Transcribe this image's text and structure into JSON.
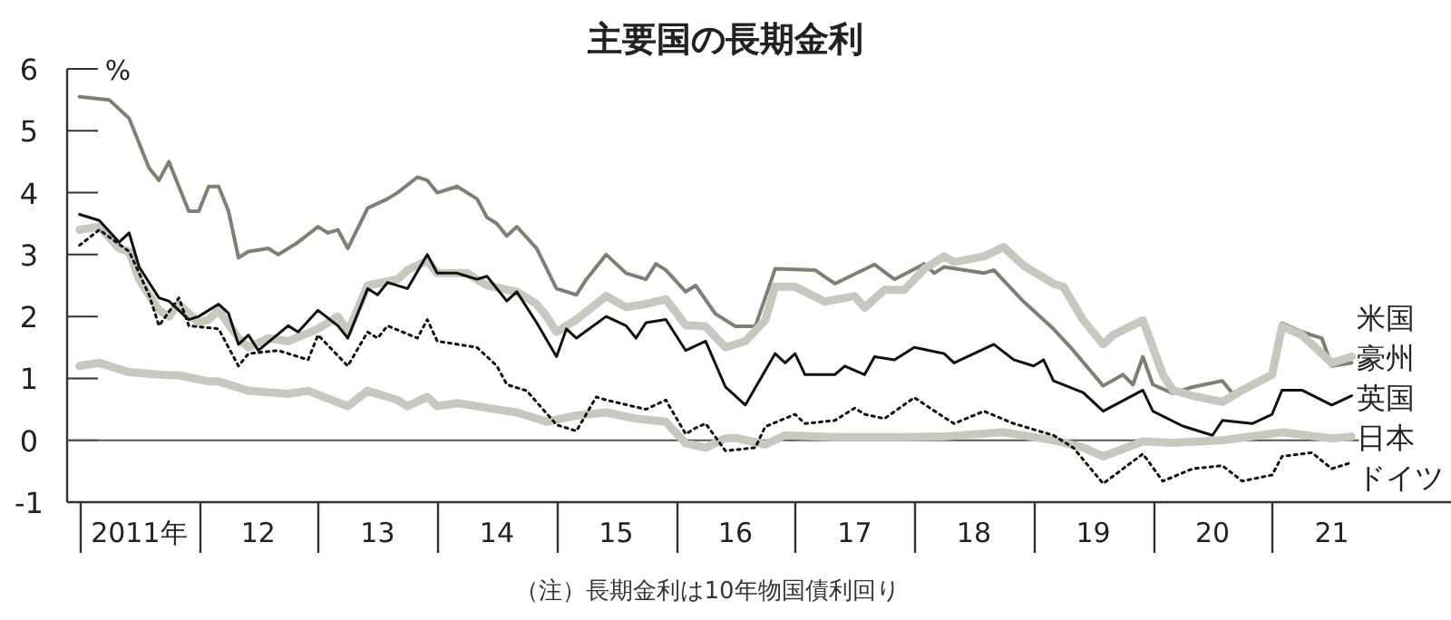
{
  "chart_data": {
    "type": "line",
    "title": "主要国の長期金利",
    "ylabel": "%",
    "annotations": [
      "（注）長期金利は10年物国債利回り"
    ],
    "xlim": [
      "2010-11-24",
      "2022-07-01"
    ],
    "ylim": [
      -1,
      6
    ],
    "yticks": [
      -1,
      0,
      1,
      2,
      3,
      4,
      5,
      6
    ],
    "xticks": [
      {
        "value": "2011-01-01",
        "label": null
      },
      {
        "value": "2011-07-01",
        "label": "2011年"
      },
      {
        "value": "2012-01-01",
        "label": null
      },
      {
        "value": "2012-07-01",
        "label": "12"
      },
      {
        "value": "2013-01-01",
        "label": null
      },
      {
        "value": "2013-07-01",
        "label": "13"
      },
      {
        "value": "2014-01-01",
        "label": null
      },
      {
        "value": "2014-07-01",
        "label": "14"
      },
      {
        "value": "2015-01-01",
        "label": null
      },
      {
        "value": "2015-07-01",
        "label": "15"
      },
      {
        "value": "2016-01-01",
        "label": null
      },
      {
        "value": "2016-07-01",
        "label": "16"
      },
      {
        "value": "2017-01-01",
        "label": null
      },
      {
        "value": "2017-07-01",
        "label": "17"
      },
      {
        "value": "2018-01-01",
        "label": null
      },
      {
        "value": "2018-07-01",
        "label": "18"
      },
      {
        "value": "2019-01-01",
        "label": null
      },
      {
        "value": "2019-07-01",
        "label": "19"
      },
      {
        "value": "2020-01-01",
        "label": null
      },
      {
        "value": "2020-07-01",
        "label": "20"
      },
      {
        "value": "2021-01-01",
        "label": null
      },
      {
        "value": "2021-07-01",
        "label": "21"
      }
    ],
    "grid": false,
    "marker": "none",
    "ref_lines": [
      {
        "axis": "y",
        "value": 0,
        "color": "#555555"
      }
    ],
    "series": [
      {
        "name": "豪州",
        "color": "#7f7f77",
        "line_style": "solid",
        "x": [
          "2011-01",
          "2011-04",
          "2011-06",
          "2011-08",
          "2011-09",
          "2011-10",
          "2011-12",
          "2012-01",
          "2012-02",
          "2012-03",
          "2012-04",
          "2012-05",
          "2012-06",
          "2012-08",
          "2012-09",
          "2012-11",
          "2013-01",
          "2013-02",
          "2013-03",
          "2013-04",
          "2013-06",
          "2013-08",
          "2013-09",
          "2013-11",
          "2013-12",
          "2014-01",
          "2014-03",
          "2014-05",
          "2014-06",
          "2014-07",
          "2014-08",
          "2014-09",
          "2014-11",
          "2015-01",
          "2015-03",
          "2015-04",
          "2015-06",
          "2015-08",
          "2015-10",
          "2015-11",
          "2015-12",
          "2016-02",
          "2016-03",
          "2016-05",
          "2016-07",
          "2016-09",
          "2016-11",
          "2017-03",
          "2017-05",
          "2017-09",
          "2017-11",
          "2018-02",
          "2018-03",
          "2018-04",
          "2018-08",
          "2018-09",
          "2018-12",
          "2019-03",
          "2019-05",
          "2019-08",
          "2019-10",
          "2019-11",
          "2019-12",
          "2020-01",
          "2020-03",
          "2020-05",
          "2020-08",
          "2020-09",
          "2021-01",
          "2021-02",
          "2021-04",
          "2021-06",
          "2021-07",
          "2021-09"
        ],
        "values": [
          5.55,
          5.5,
          5.2,
          4.4,
          4.2,
          4.5,
          3.7,
          3.7,
          4.1,
          4.1,
          3.7,
          2.95,
          3.05,
          3.1,
          3.0,
          3.2,
          3.45,
          3.35,
          3.4,
          3.1,
          3.75,
          3.9,
          4.0,
          4.25,
          4.2,
          4.0,
          4.1,
          3.9,
          3.6,
          3.5,
          3.3,
          3.45,
          3.1,
          2.45,
          2.35,
          2.6,
          3.0,
          2.7,
          2.6,
          2.85,
          2.75,
          2.4,
          2.5,
          2.04,
          1.84,
          1.84,
          2.77,
          2.75,
          2.53,
          2.84,
          2.6,
          2.85,
          2.7,
          2.8,
          2.7,
          2.75,
          2.24,
          1.8,
          1.45,
          0.88,
          1.06,
          0.9,
          1.35,
          0.9,
          0.76,
          0.86,
          0.96,
          0.76,
          1.06,
          1.89,
          1.75,
          1.65,
          1.2,
          1.25
        ]
      },
      {
        "name": "米国",
        "color": "#c8c8c0",
        "line_style": "solid",
        "x": [
          "2011-01",
          "2011-03",
          "2011-05",
          "2011-06",
          "2011-07",
          "2011-09",
          "2011-10",
          "2011-11",
          "2012-01",
          "2012-02",
          "2012-03",
          "2012-05",
          "2012-06",
          "2012-08",
          "2012-10",
          "2013-01",
          "2013-03",
          "2013-04",
          "2013-06",
          "2013-09",
          "2013-10",
          "2013-12",
          "2014-01",
          "2014-04",
          "2014-06",
          "2014-09",
          "2014-11",
          "2014-12",
          "2015-01",
          "2015-03",
          "2015-06",
          "2015-08",
          "2015-10",
          "2015-12",
          "2016-02",
          "2016-04",
          "2016-06",
          "2016-08",
          "2016-10",
          "2016-11",
          "2017-01",
          "2017-04",
          "2017-07",
          "2017-08",
          "2017-10",
          "2017-12",
          "2018-02",
          "2018-04",
          "2018-05",
          "2018-08",
          "2018-10",
          "2018-12",
          "2019-03",
          "2019-04",
          "2019-06",
          "2019-08",
          "2019-09",
          "2019-12",
          "2020-02",
          "2020-03",
          "2020-05",
          "2020-08",
          "2020-10",
          "2021-01",
          "2021-02",
          "2021-04",
          "2021-07",
          "2021-09"
        ],
        "values": [
          3.4,
          3.45,
          3.1,
          3.05,
          2.6,
          2.1,
          2.0,
          2.2,
          1.9,
          1.95,
          2.1,
          1.65,
          1.5,
          1.65,
          1.6,
          1.8,
          2.0,
          1.75,
          2.5,
          2.6,
          2.75,
          2.9,
          2.7,
          2.7,
          2.5,
          2.4,
          2.2,
          2.0,
          1.75,
          1.95,
          2.33,
          2.15,
          2.2,
          2.28,
          1.86,
          1.84,
          1.5,
          1.6,
          1.94,
          2.48,
          2.48,
          2.24,
          2.33,
          2.14,
          2.43,
          2.43,
          2.77,
          2.97,
          2.88,
          2.97,
          3.12,
          2.82,
          2.53,
          2.48,
          1.94,
          1.55,
          1.7,
          1.94,
          1.06,
          0.81,
          0.72,
          0.62,
          0.81,
          1.06,
          1.84,
          1.7,
          1.25,
          1.35
        ]
      },
      {
        "name": "英国",
        "color": "#111111",
        "line_style": "solid",
        "x": [
          "2011-01",
          "2011-03",
          "2011-05",
          "2011-06",
          "2011-07",
          "2011-09",
          "2011-10",
          "2011-12",
          "2012-01",
          "2012-03",
          "2012-04",
          "2012-05",
          "2012-06",
          "2012-07",
          "2012-10",
          "2012-11",
          "2013-01",
          "2013-03",
          "2013-04",
          "2013-06",
          "2013-07",
          "2013-08",
          "2013-10",
          "2013-12",
          "2014-01",
          "2014-03",
          "2014-05",
          "2014-06",
          "2014-08",
          "2014-09",
          "2014-11",
          "2015-01",
          "2015-02",
          "2015-03",
          "2015-06",
          "2015-08",
          "2015-09",
          "2015-10",
          "2015-12",
          "2016-02",
          "2016-04",
          "2016-06",
          "2016-08",
          "2016-11",
          "2016-12",
          "2017-01",
          "2017-02",
          "2017-05",
          "2017-06",
          "2017-08",
          "2017-09",
          "2017-11",
          "2018-01",
          "2018-04",
          "2018-05",
          "2018-09",
          "2018-11",
          "2019-01",
          "2019-02",
          "2019-03",
          "2019-06",
          "2019-08",
          "2019-12",
          "2020-01",
          "2020-04",
          "2020-07",
          "2020-08",
          "2020-11",
          "2021-01",
          "2021-02",
          "2021-04",
          "2021-07",
          "2021-09"
        ],
        "values": [
          3.65,
          3.55,
          3.2,
          3.35,
          2.8,
          2.3,
          2.25,
          1.95,
          2.0,
          2.2,
          2.05,
          1.55,
          1.7,
          1.45,
          1.85,
          1.75,
          2.1,
          1.85,
          1.65,
          2.45,
          2.35,
          2.55,
          2.45,
          3.0,
          2.7,
          2.7,
          2.6,
          2.65,
          2.25,
          2.4,
          1.9,
          1.35,
          1.8,
          1.65,
          2.0,
          1.85,
          1.65,
          1.9,
          1.95,
          1.45,
          1.6,
          0.86,
          0.57,
          1.4,
          1.25,
          1.4,
          1.06,
          1.06,
          1.2,
          1.06,
          1.35,
          1.3,
          1.5,
          1.4,
          1.25,
          1.55,
          1.3,
          1.2,
          1.3,
          0.96,
          0.77,
          0.47,
          0.81,
          0.47,
          0.23,
          0.08,
          0.32,
          0.27,
          0.42,
          0.81,
          0.81,
          0.57,
          0.72
        ]
      },
      {
        "name": "日本",
        "color": "#c8c8c0",
        "line_style": "solid",
        "x": [
          "2011-01",
          "2011-03",
          "2011-06",
          "2011-10",
          "2011-11",
          "2012-02",
          "2012-03",
          "2012-06",
          "2012-10",
          "2012-12",
          "2013-04",
          "2013-06",
          "2013-09",
          "2013-10",
          "2013-12",
          "2014-01",
          "2014-03",
          "2014-07",
          "2014-09",
          "2014-11",
          "2014-12",
          "2015-03",
          "2015-06",
          "2015-09",
          "2015-12",
          "2016-02",
          "2016-04",
          "2016-06",
          "2016-07",
          "2016-10",
          "2016-12",
          "2017-05",
          "2017-11",
          "2018-04",
          "2018-10",
          "2019-03",
          "2019-06",
          "2019-08",
          "2019-12",
          "2020-03",
          "2020-08",
          "2021-02",
          "2021-07",
          "2021-09"
        ],
        "values": [
          1.2,
          1.25,
          1.1,
          1.05,
          1.05,
          0.95,
          0.95,
          0.8,
          0.75,
          0.8,
          0.55,
          0.8,
          0.65,
          0.55,
          0.7,
          0.55,
          0.6,
          0.5,
          0.45,
          0.35,
          0.3,
          0.4,
          0.45,
          0.35,
          0.3,
          -0.05,
          -0.12,
          0.03,
          0.04,
          -0.07,
          0.08,
          0.05,
          0.05,
          0.06,
          0.13,
          0,
          -0.12,
          -0.26,
          -0.02,
          -0.04,
          0.0,
          0.13,
          0.03,
          0.06
        ]
      },
      {
        "name": "ドイツ",
        "color": "#111111",
        "line_style": "dotted",
        "x": [
          "2011-01",
          "2011-03",
          "2011-06",
          "2011-08",
          "2011-09",
          "2011-11",
          "2011-12",
          "2012-03",
          "2012-05",
          "2012-06",
          "2012-09",
          "2012-12",
          "2013-01",
          "2013-04",
          "2013-06",
          "2013-07",
          "2013-08",
          "2013-11",
          "2013-12",
          "2014-01",
          "2014-05",
          "2014-07",
          "2014-08",
          "2014-10",
          "2015-01",
          "2015-03",
          "2015-05",
          "2015-06",
          "2015-10",
          "2015-12",
          "2016-02",
          "2016-03",
          "2016-04",
          "2016-06",
          "2016-09",
          "2016-10",
          "2017-01",
          "2017-02",
          "2017-05",
          "2017-07",
          "2017-08",
          "2017-10",
          "2018-01",
          "2018-04",
          "2018-05",
          "2018-08",
          "2018-11",
          "2019-03",
          "2019-05",
          "2019-08",
          "2019-10",
          "2019-12",
          "2020-02",
          "2020-05",
          "2020-08",
          "2020-10",
          "2021-01",
          "2021-02",
          "2021-05",
          "2021-07",
          "2021-09"
        ],
        "values": [
          3.15,
          3.4,
          3.05,
          2.35,
          1.85,
          2.3,
          1.85,
          1.8,
          1.2,
          1.4,
          1.45,
          1.3,
          1.7,
          1.2,
          1.75,
          1.65,
          1.85,
          1.65,
          1.95,
          1.6,
          1.5,
          1.2,
          0.9,
          0.8,
          0.25,
          0.15,
          0.7,
          0.65,
          0.5,
          0.65,
          0.1,
          0.2,
          0.27,
          -0.17,
          -0.12,
          0.22,
          0.42,
          0.27,
          0.32,
          0.52,
          0.42,
          0.35,
          0.69,
          0.37,
          0.27,
          0.47,
          0.27,
          0.08,
          -0.12,
          -0.7,
          -0.46,
          -0.22,
          -0.66,
          -0.46,
          -0.41,
          -0.66,
          -0.56,
          -0.26,
          -0.2,
          -0.46,
          -0.36
        ]
      }
    ]
  }
}
